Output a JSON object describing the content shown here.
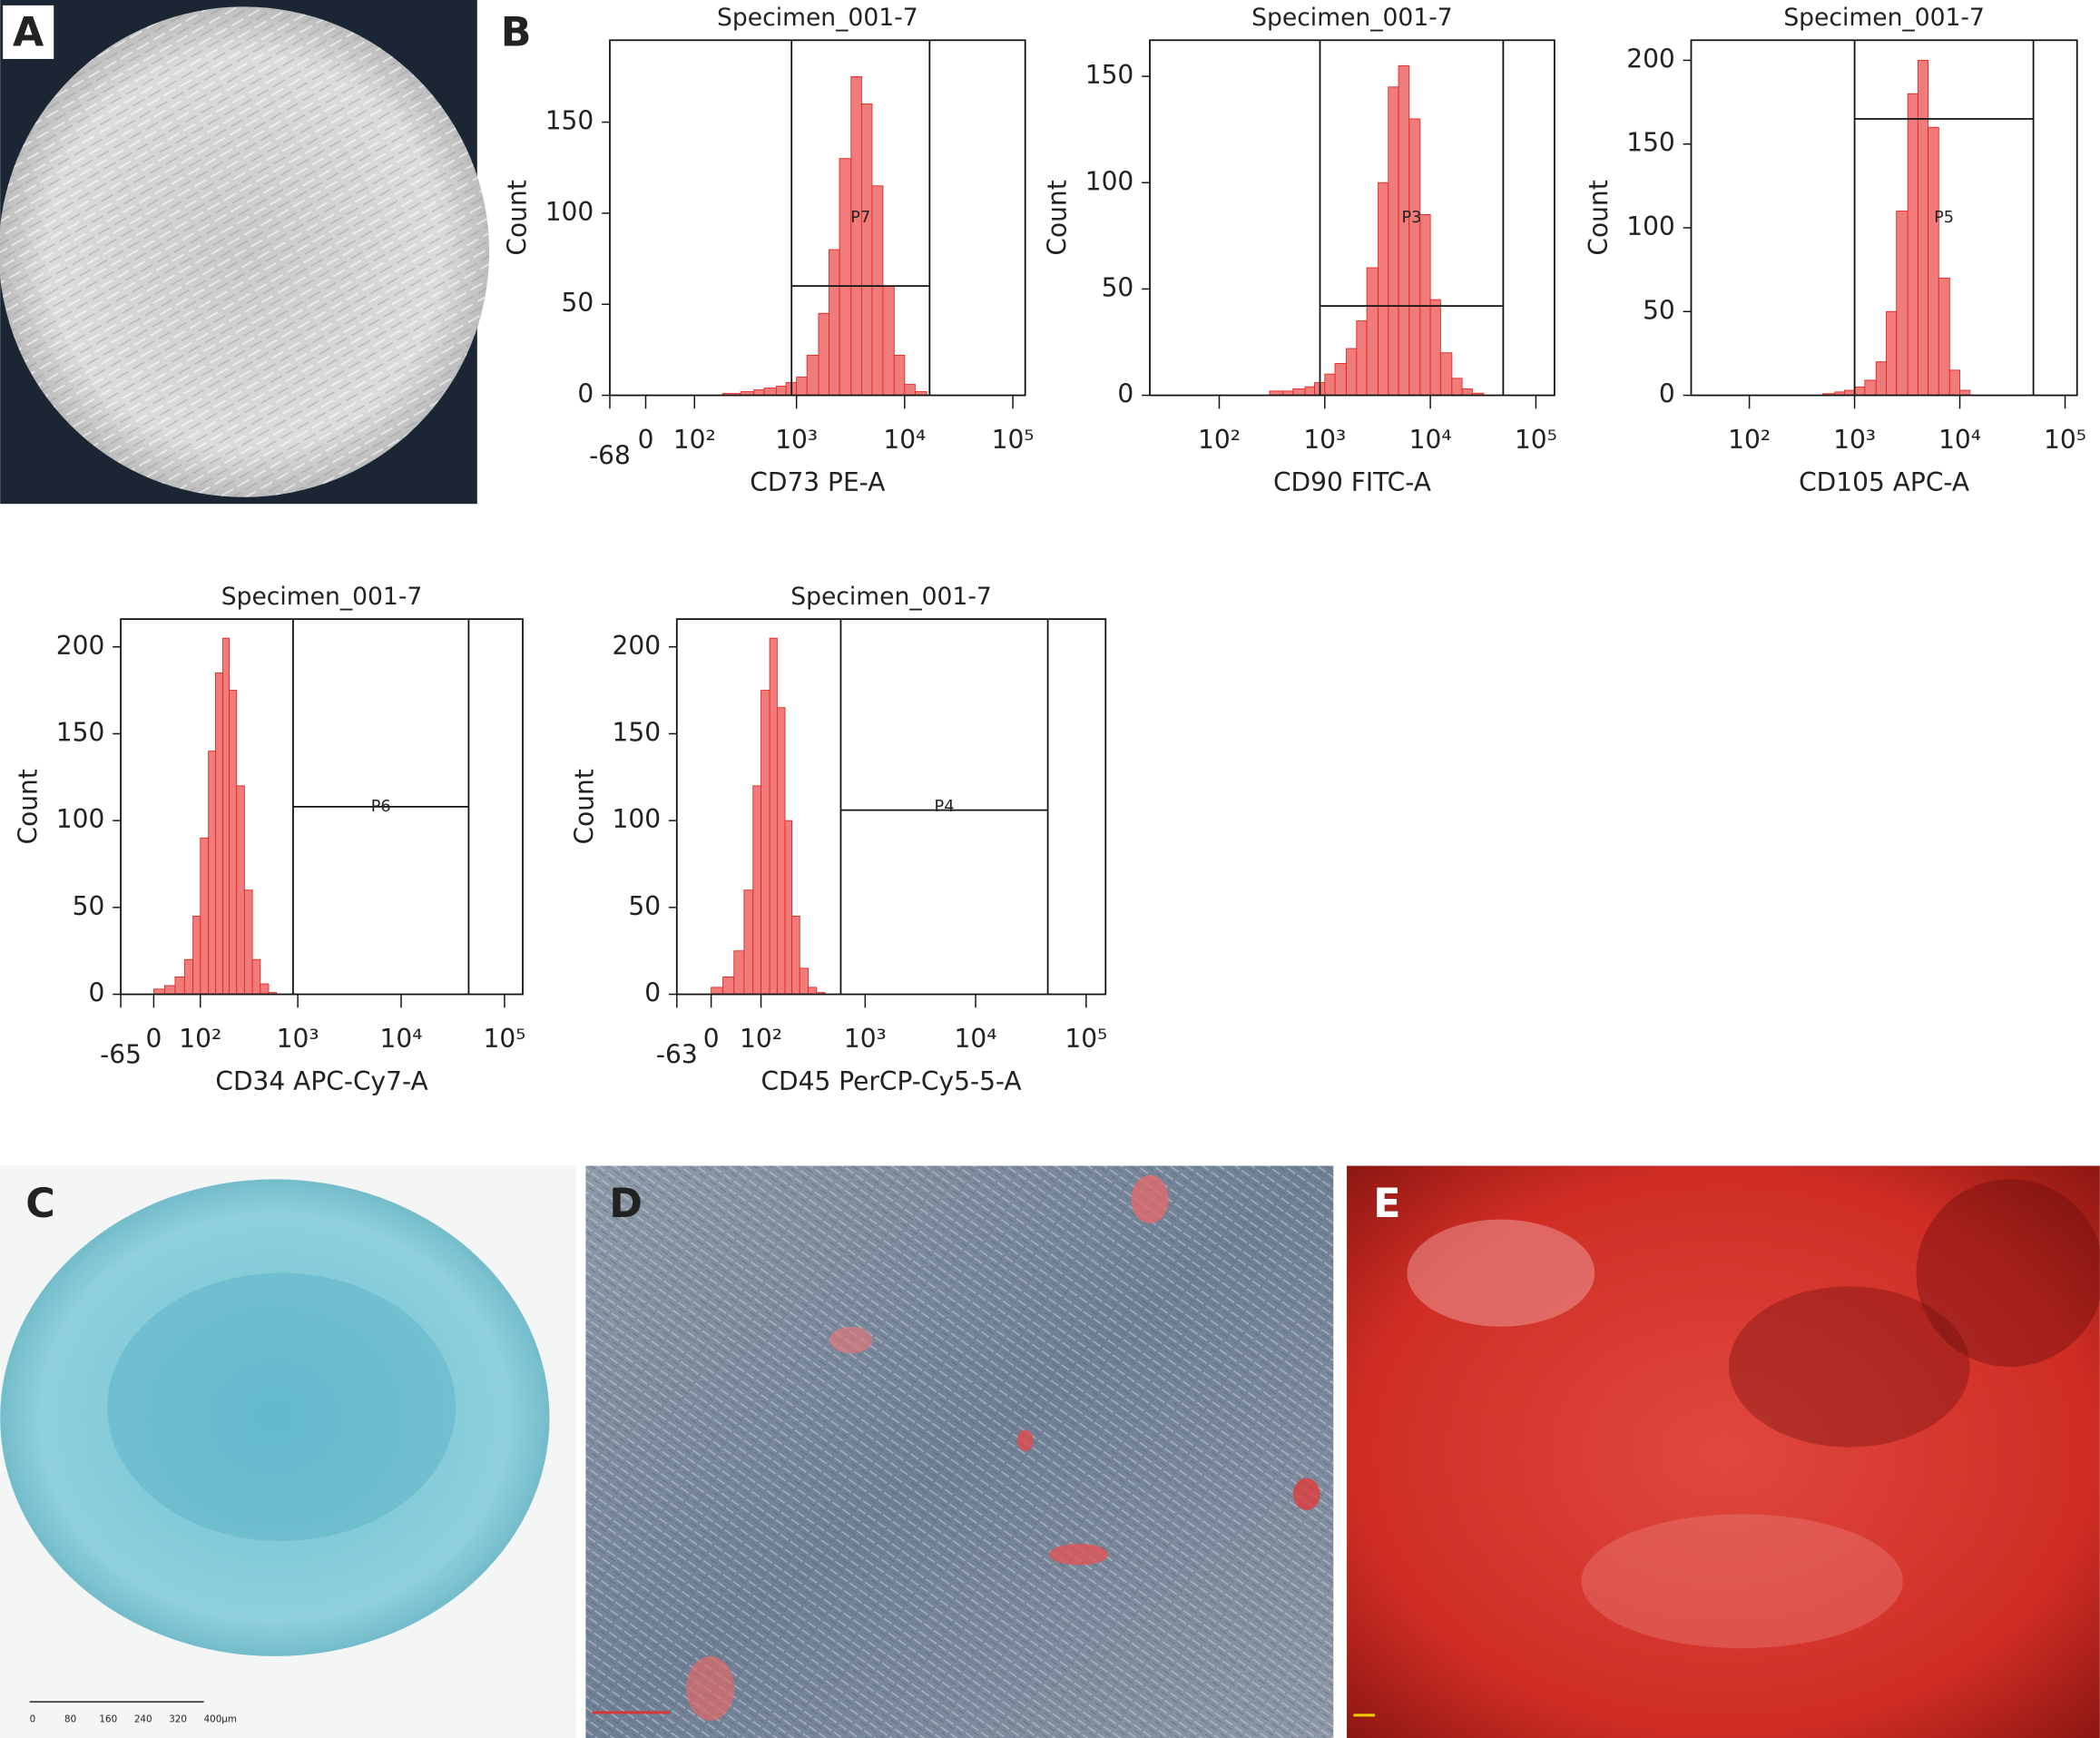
{
  "panels": [
    {
      "label": "A"
    },
    {
      "label": "B"
    },
    {
      "label": "C"
    },
    {
      "label": "D"
    },
    {
      "label": "E"
    }
  ],
  "scale_bar": {
    "labels": [
      "0",
      "80",
      "160",
      "240",
      "320",
      "400μm"
    ]
  },
  "chart_data": [
    {
      "type": "histogram",
      "title": "Specimen_001-7",
      "x_label": "CD73 PE-A",
      "y_label": "Count",
      "color": "#f07b7b",
      "edge_color": "#e8251f",
      "xscale": "biex",
      "xlim": [
        -68,
        130000
      ],
      "xticks": [
        -68,
        0,
        {
          "value": 100,
          "label": "10²"
        },
        {
          "value": 1000,
          "label": "10³"
        },
        {
          "value": 10000,
          "label": "10⁴"
        },
        {
          "value": 100000,
          "label": "10⁵"
        }
      ],
      "ylim": [
        0,
        195
      ],
      "yticks": [
        0,
        50,
        100,
        150
      ],
      "bins": [
        200,
        300,
        400,
        500,
        650,
        800,
        1000,
        1250,
        1600,
        2000,
        2500,
        3200,
        4000,
        5000,
        6300,
        8000,
        10000,
        12500,
        16000,
        20000
      ],
      "values": [
        1,
        2,
        3,
        4,
        5,
        7,
        10,
        22,
        45,
        80,
        130,
        175,
        160,
        115,
        60,
        22,
        6,
        2,
        0
      ],
      "gates": [
        {
          "name": "P7",
          "xmin": 900,
          "xmax": 17000,
          "y": 60
        }
      ]
    },
    {
      "type": "histogram",
      "title": "Specimen_001-7",
      "x_label": "CD90 FITC-A",
      "y_label": "Count",
      "color": "#f07b7b",
      "edge_color": "#e8251f",
      "xscale": "log",
      "xlim": [
        22,
        150000
      ],
      "xticks": [
        {
          "value": 100,
          "label": "10²"
        },
        {
          "value": 1000,
          "label": "10³"
        },
        {
          "value": 10000,
          "label": "10⁴"
        },
        {
          "value": 100000,
          "label": "10⁵"
        }
      ],
      "ylim": [
        0,
        167
      ],
      "yticks": [
        0,
        50,
        100,
        150
      ],
      "bins": [
        300,
        400,
        500,
        650,
        800,
        1000,
        1250,
        1600,
        2000,
        2500,
        3200,
        4000,
        5000,
        6300,
        8000,
        10000,
        12500,
        16000,
        20000,
        25000,
        32000
      ],
      "values": [
        2,
        2,
        3,
        4,
        6,
        10,
        15,
        22,
        35,
        60,
        100,
        145,
        155,
        130,
        85,
        45,
        20,
        8,
        3,
        1
      ],
      "gates": [
        {
          "name": "P3",
          "xmin": 900,
          "xmax": 49000,
          "y": 42
        }
      ]
    },
    {
      "type": "histogram",
      "title": "Specimen_001-7",
      "x_label": "CD105 APC-A",
      "y_label": "Count",
      "color": "#f07b7b",
      "edge_color": "#e8251f",
      "xscale": "log",
      "xlim": [
        28,
        130000
      ],
      "xticks": [
        {
          "value": 100,
          "label": "10²"
        },
        {
          "value": 1000,
          "label": "10³"
        },
        {
          "value": 10000,
          "label": "10⁴"
        },
        {
          "value": 100000,
          "label": "10⁵"
        }
      ],
      "ylim": [
        0,
        212
      ],
      "yticks": [
        0,
        50,
        100,
        150,
        200
      ],
      "bins": [
        500,
        650,
        800,
        1000,
        1250,
        1600,
        2000,
        2500,
        3200,
        4000,
        5000,
        6300,
        8000,
        10000,
        12500
      ],
      "values": [
        1,
        2,
        3,
        5,
        9,
        20,
        50,
        110,
        180,
        200,
        160,
        70,
        15,
        3
      ],
      "gates": [
        {
          "name": "P5",
          "xmin": 1000,
          "xmax": 50000,
          "y": 165
        }
      ]
    },
    {
      "type": "histogram",
      "title": "Specimen_001-7",
      "x_label": "CD34 APC-Cy7-A",
      "y_label": "Count",
      "color": "#f07b7b",
      "edge_color": "#e8251f",
      "xscale": "biex",
      "xlim": [
        -65,
        150000
      ],
      "xticks": [
        -65,
        0,
        {
          "value": 100,
          "label": "10²"
        },
        {
          "value": 1000,
          "label": "10³"
        },
        {
          "value": 10000,
          "label": "10⁴"
        },
        {
          "value": 100000,
          "label": "10⁵"
        }
      ],
      "ylim": [
        0,
        216
      ],
      "yticks": [
        0,
        50,
        100,
        150,
        200
      ],
      "bins": [
        0,
        20,
        40,
        60,
        80,
        100,
        125,
        150,
        180,
        210,
        250,
        300,
        360,
        430,
        520,
        620
      ],
      "values": [
        3,
        5,
        10,
        20,
        45,
        90,
        140,
        185,
        205,
        175,
        120,
        60,
        20,
        6,
        1
      ],
      "gates": [
        {
          "name": "P6",
          "xmin": 900,
          "xmax": 45000,
          "y": 108
        }
      ]
    },
    {
      "type": "histogram",
      "title": "Specimen_001-7",
      "x_label": "CD45 PerCP-Cy5-5-A",
      "y_label": "Count",
      "color": "#f07b7b",
      "edge_color": "#e8251f",
      "xscale": "biex",
      "xlim": [
        -63,
        150000
      ],
      "xticks": [
        -63,
        0,
        {
          "value": 100,
          "label": "10²"
        },
        {
          "value": 1000,
          "label": "10³"
        },
        {
          "value": 10000,
          "label": "10⁴"
        },
        {
          "value": 100000,
          "label": "10⁵"
        }
      ],
      "ylim": [
        0,
        216
      ],
      "yticks": [
        0,
        50,
        100,
        150,
        200
      ],
      "bins": [
        0,
        20,
        40,
        60,
        80,
        100,
        125,
        150,
        180,
        210,
        250,
        300,
        360,
        430
      ],
      "values": [
        4,
        10,
        25,
        60,
        120,
        175,
        205,
        165,
        100,
        45,
        15,
        4,
        1
      ],
      "gates": [
        {
          "name": "P4",
          "xmin": 600,
          "xmax": 45000,
          "y": 106
        }
      ]
    }
  ]
}
